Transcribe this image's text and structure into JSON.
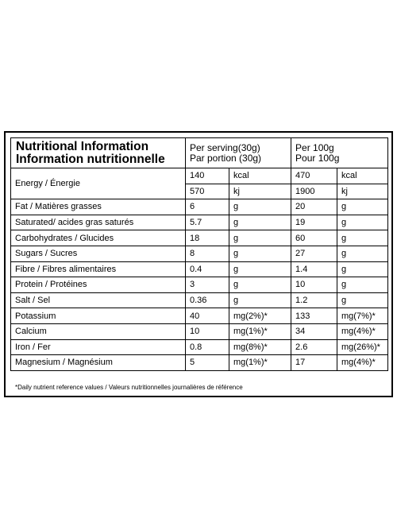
{
  "header": {
    "title": [
      "Nutritional Information",
      "Information nutritionnelle"
    ],
    "serving": [
      "Per serving(30g)",
      "Par portion (30g)"
    ],
    "per100": [
      "Per 100g",
      "Pour 100g"
    ]
  },
  "rows": [
    {
      "label": "Energy / Énergie",
      "values": [
        [
          "140",
          "kcal",
          "470",
          "kcal"
        ],
        [
          "570",
          "kj",
          "1900",
          "kj"
        ]
      ]
    },
    {
      "label": "Fat / Matières grasses",
      "values": [
        [
          "6",
          "g",
          "20",
          "g"
        ]
      ]
    },
    {
      "label": "Saturated/ acides gras saturés",
      "values": [
        [
          "5.7",
          "g",
          "19",
          "g"
        ]
      ]
    },
    {
      "label": "Carbohydrates / Glucides",
      "values": [
        [
          "18",
          "g",
          "60",
          "g"
        ]
      ]
    },
    {
      "label": "Sugars / Sucres",
      "values": [
        [
          "8",
          "g",
          "27",
          "g"
        ]
      ]
    },
    {
      "label": "Fibre / Fibres alimentaires",
      "values": [
        [
          "0.4",
          "g",
          "1.4",
          "g"
        ]
      ]
    },
    {
      "label": "Protein / Protéines",
      "values": [
        [
          "3",
          "g",
          "10",
          "g"
        ]
      ]
    },
    {
      "label": "Salt / Sel",
      "values": [
        [
          "0.36",
          "g",
          "1.2",
          "g"
        ]
      ]
    },
    {
      "label": "Potassium",
      "values": [
        [
          "40",
          "mg(2%)*",
          "133",
          "mg(7%)*"
        ]
      ]
    },
    {
      "label": "Calcium",
      "values": [
        [
          "10",
          "mg(1%)*",
          "34",
          "mg(4%)*"
        ]
      ]
    },
    {
      "label": "Iron / Fer",
      "values": [
        [
          "0.8",
          "mg(8%)*",
          "2.6",
          "mg(26%)*"
        ]
      ]
    },
    {
      "label": "Magnesium / Magnésium",
      "values": [
        [
          "5",
          "mg(1%)*",
          "17",
          "mg(4%)*"
        ]
      ]
    }
  ],
  "footnote": "*Daily nutrient reference values / Valeurs nutritionnelles journalières de référence"
}
